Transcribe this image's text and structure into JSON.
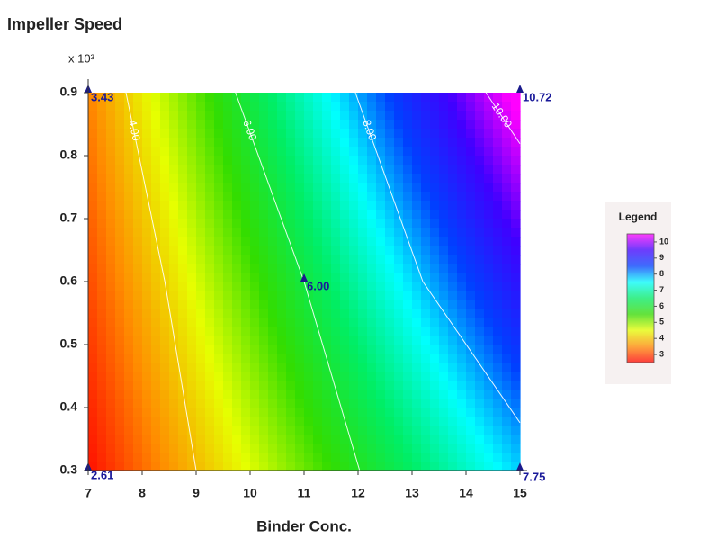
{
  "chart_data": {
    "type": "contour",
    "y_label": "Impeller Speed",
    "y_multiplier": "x 10³",
    "x_label": "Binder Conc.",
    "xlim": [
      7,
      15
    ],
    "xticks": [
      7,
      8,
      9,
      10,
      11,
      12,
      13,
      14,
      15
    ],
    "ylim": [
      0.3,
      0.9
    ],
    "yticks": [
      0.3,
      0.4,
      0.5,
      0.6,
      0.7,
      0.8,
      0.9
    ],
    "points": [
      {
        "x": 7,
        "y": 0.9,
        "value": 3.43
      },
      {
        "x": 15,
        "y": 0.9,
        "value": 10.72
      },
      {
        "x": 7,
        "y": 0.3,
        "value": 2.61
      },
      {
        "x": 15,
        "y": 0.3,
        "value": 7.75
      },
      {
        "x": 11,
        "y": 0.6,
        "value": 6,
        "label": "6.00"
      }
    ],
    "contours": [
      {
        "level": {
          "value": 4,
          "label": "4.00"
        },
        "x": [
          7.7,
          8.42,
          9.0
        ],
        "y": [
          0.9,
          0.6,
          0.3
        ]
      },
      {
        "level": {
          "value": 6,
          "label": "6.00"
        },
        "x": [
          9.73,
          11.0,
          12.03
        ],
        "y": [
          0.9,
          0.6,
          0.3
        ]
      },
      {
        "level": {
          "value": 8,
          "label": "8.00"
        },
        "x": [
          11.95,
          13.2,
          15.0
        ],
        "y": [
          0.9,
          0.6,
          0.376
        ]
      },
      {
        "level": {
          "value": 10,
          "label": "10.00"
        },
        "x": [
          14.37,
          15.0
        ],
        "y": [
          0.9,
          0.819
        ]
      }
    ],
    "colorbar": {
      "title": "Legend",
      "lim": [
        2.5,
        10.5
      ],
      "ticks": [
        3,
        4,
        5,
        6,
        7,
        8,
        9,
        10
      ],
      "colors": [
        "#ff0000",
        "#ff8c00",
        "#e6ff00",
        "#33dd00",
        "#00ee66",
        "#00ffff",
        "#0040ff",
        "#4000ff",
        "#ff00ff"
      ]
    }
  }
}
